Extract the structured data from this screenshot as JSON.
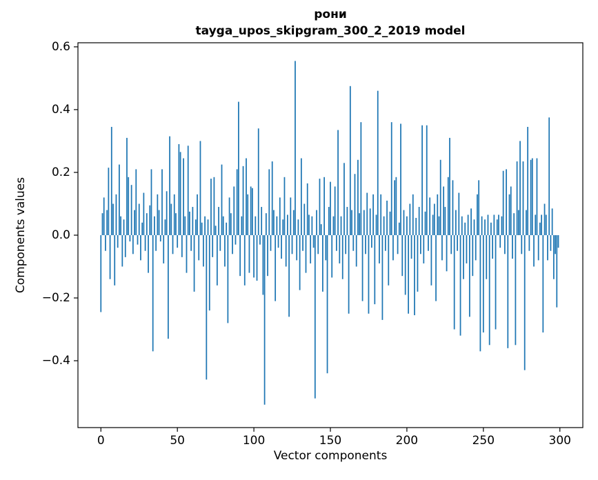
{
  "chart_data": {
    "type": "bar",
    "title_line1": "рони",
    "title_line2": "tayga_upos_skipgram_300_2_2019 model",
    "xlabel": "Vector components",
    "ylabel": "Components values",
    "xlim": [
      -15,
      315
    ],
    "ylim": [
      -0.613,
      0.613
    ],
    "xticks": [
      0,
      50,
      100,
      150,
      200,
      250,
      300
    ],
    "yticks": [
      -0.4,
      -0.2,
      0.0,
      0.2,
      0.4,
      0.6
    ],
    "grid": false,
    "legend": "none",
    "bar_color": "#1f77b4",
    "bar_width": 0.8,
    "x_start": 0,
    "values": [
      -0.245,
      0.07,
      0.12,
      -0.05,
      0.08,
      0.215,
      -0.14,
      0.345,
      0.1,
      -0.16,
      0.13,
      -0.04,
      0.225,
      0.06,
      -0.1,
      0.05,
      -0.07,
      0.31,
      0.185,
      -0.02,
      0.16,
      -0.06,
      0.08,
      0.21,
      -0.03,
      0.1,
      -0.08,
      0.04,
      0.135,
      -0.05,
      0.07,
      -0.12,
      0.095,
      0.21,
      -0.37,
      0.06,
      -0.05,
      0.13,
      0.08,
      -0.02,
      0.21,
      -0.09,
      0.05,
      0.14,
      -0.33,
      0.315,
      0.1,
      -0.06,
      0.13,
      0.07,
      -0.04,
      0.29,
      0.265,
      -0.07,
      0.245,
      0.06,
      -0.12,
      0.285,
      0.075,
      -0.05,
      0.09,
      -0.18,
      0.05,
      0.13,
      -0.08,
      0.3,
      0.04,
      -0.1,
      0.06,
      -0.46,
      0.05,
      -0.24,
      0.18,
      -0.07,
      0.185,
      0.03,
      -0.16,
      0.09,
      -0.05,
      0.225,
      0.06,
      -0.1,
      0.04,
      -0.28,
      0.12,
      0.07,
      -0.06,
      0.155,
      -0.03,
      0.21,
      0.425,
      -0.13,
      0.06,
      0.22,
      -0.16,
      0.245,
      0.13,
      -0.12,
      0.155,
      0.15,
      -0.135,
      0.06,
      -0.145,
      0.34,
      -0.03,
      0.09,
      -0.19,
      -0.54,
      0.07,
      -0.13,
      0.21,
      -0.05,
      0.235,
      0.08,
      -0.21,
      0.06,
      -0.04,
      0.12,
      -0.075,
      0.05,
      0.185,
      -0.1,
      0.065,
      -0.26,
      0.12,
      -0.06,
      0.08,
      0.555,
      -0.08,
      0.05,
      -0.175,
      0.245,
      -0.05,
      0.1,
      -0.12,
      0.165,
      0.065,
      -0.09,
      0.06,
      -0.04,
      -0.52,
      0.08,
      -0.06,
      0.18,
      0.035,
      -0.18,
      0.185,
      -0.08,
      -0.44,
      0.09,
      0.17,
      -0.135,
      0.06,
      0.155,
      -0.05,
      0.335,
      -0.09,
      0.06,
      -0.14,
      0.23,
      -0.06,
      0.09,
      -0.25,
      0.475,
      0.08,
      -0.05,
      0.195,
      -0.1,
      0.24,
      0.07,
      0.36,
      -0.21,
      0.08,
      -0.06,
      0.135,
      -0.25,
      0.085,
      -0.04,
      0.13,
      -0.22,
      0.065,
      0.46,
      -0.09,
      0.13,
      -0.27,
      0.06,
      -0.05,
      0.11,
      -0.16,
      0.075,
      0.36,
      -0.08,
      0.175,
      0.185,
      -0.06,
      0.04,
      0.355,
      -0.13,
      0.08,
      -0.19,
      0.06,
      -0.25,
      0.1,
      -0.075,
      0.13,
      -0.255,
      0.055,
      -0.18,
      0.09,
      -0.06,
      0.35,
      -0.09,
      0.075,
      0.35,
      -0.05,
      0.12,
      -0.16,
      0.065,
      0.1,
      -0.21,
      0.13,
      0.06,
      0.24,
      -0.08,
      0.155,
      0.09,
      -0.115,
      0.185,
      0.31,
      -0.06,
      0.175,
      -0.3,
      0.08,
      -0.05,
      0.135,
      -0.32,
      0.06,
      -0.14,
      0.04,
      -0.09,
      0.065,
      -0.26,
      0.085,
      -0.13,
      0.05,
      -0.08,
      0.13,
      0.175,
      -0.37,
      0.06,
      -0.31,
      0.05,
      -0.14,
      0.065,
      -0.35,
      0.04,
      -0.075,
      0.065,
      -0.3,
      0.05,
      0.065,
      -0.04,
      0.06,
      0.205,
      -0.06,
      0.21,
      -0.36,
      0.13,
      0.155,
      -0.075,
      0.07,
      -0.35,
      0.235,
      0.08,
      0.3,
      -0.06,
      0.235,
      -0.43,
      0.08,
      0.345,
      -0.05,
      0.24,
      0.245,
      -0.1,
      0.065,
      0.245,
      -0.08,
      0.04,
      0.065,
      -0.31,
      0.1,
      0.065,
      -0.08,
      0.375,
      -0.05,
      0.085,
      -0.14,
      -0.06,
      -0.23,
      -0.04
    ]
  }
}
